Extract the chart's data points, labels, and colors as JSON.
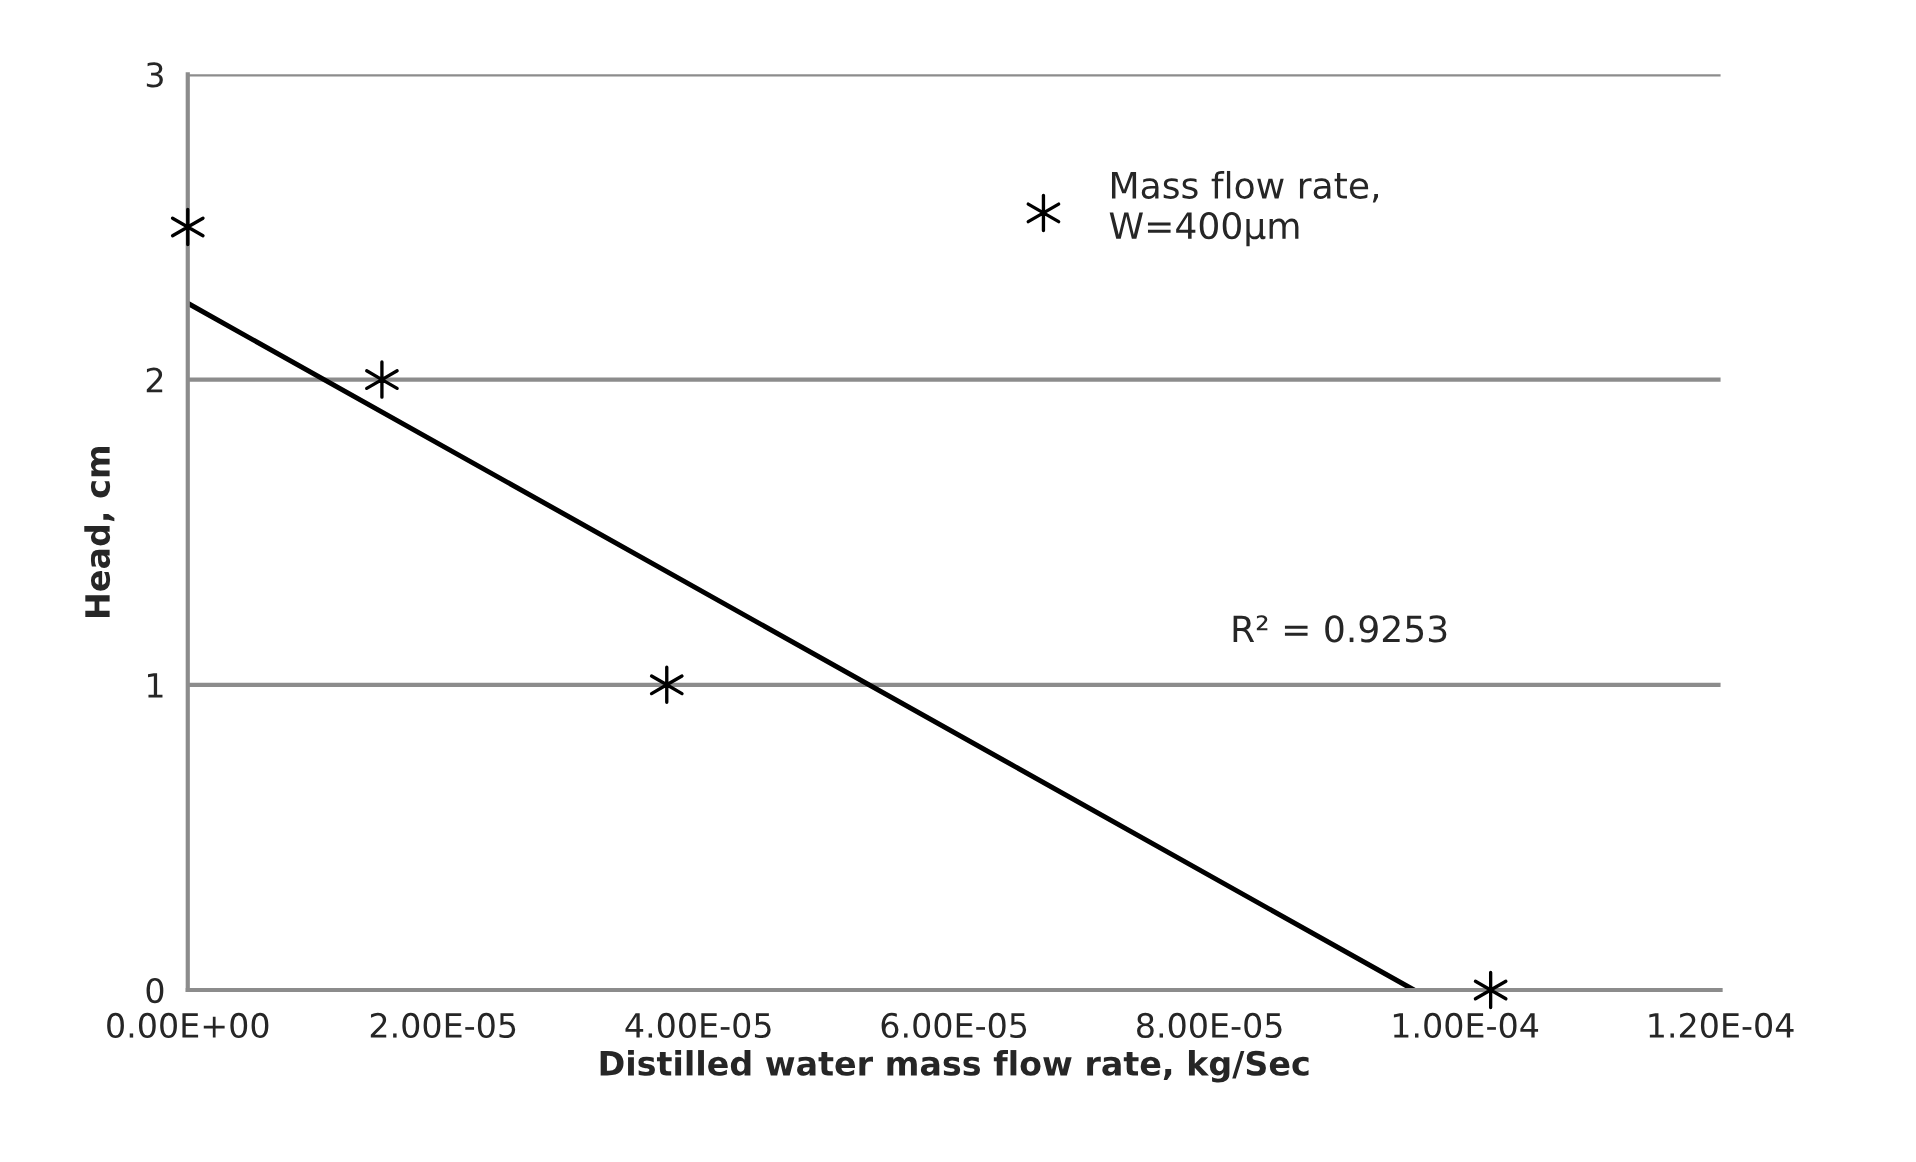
{
  "chart_data": {
    "type": "scatter",
    "xlabel": "Distilled water mass flow rate, kg/Sec",
    "ylabel": "Head, cm",
    "x": [
      0,
      1.52e-05,
      3.75e-05,
      0.000102
    ],
    "series": [
      {
        "name": "Mass flow rate,\nW=400µm",
        "color": "#000000",
        "values": [
          2.5,
          2,
          1,
          0
        ],
        "marker": "cross"
      },
      {
        "type": "line",
        "color": "#000000",
        "x": [
          0,
          9.6e-05
        ],
        "values": [
          2.25,
          0
        ],
        "line_style": "solid"
      }
    ],
    "annotations": [
      "R² = 0.9253"
    ],
    "xlim": [
      0,
      0.00012
    ],
    "ylim": [
      0,
      3
    ],
    "xticks": [
      {
        "value": 0,
        "label": "0.00E+00"
      },
      {
        "value": 2e-05,
        "label": "2.00E-05"
      },
      {
        "value": 4e-05,
        "label": "4.00E-05"
      },
      {
        "value": 6e-05,
        "label": "6.00E-05"
      },
      {
        "value": 8e-05,
        "label": "8.00E-05"
      },
      {
        "value": 0.0001,
        "label": "1.00E-04"
      },
      {
        "value": 0.00012,
        "label": "1.20E-04"
      }
    ],
    "yticks": [
      0,
      1,
      2,
      3
    ],
    "grid": "y",
    "legend": "top right"
  }
}
